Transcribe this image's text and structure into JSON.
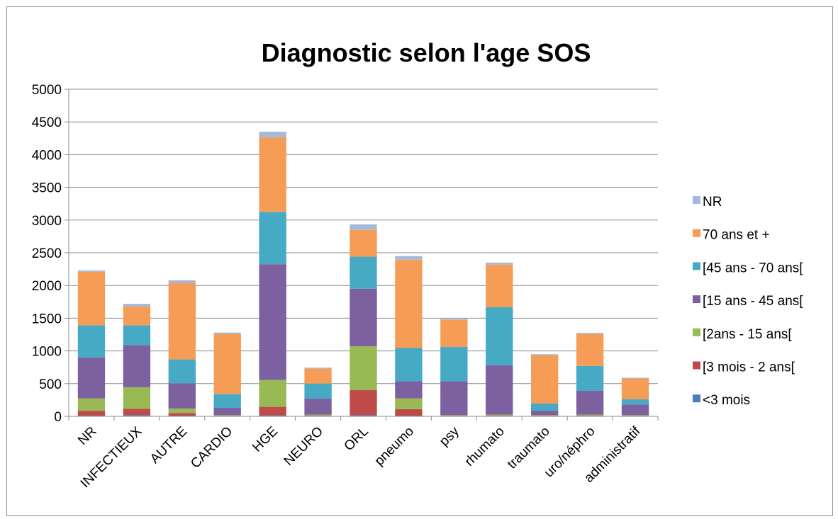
{
  "chart_data": {
    "type": "bar",
    "stacked": true,
    "title": "Diagnostic selon l'age SOS",
    "xlabel": "",
    "ylabel": "",
    "ylim": [
      0,
      5000
    ],
    "yticks": [
      0,
      500,
      1000,
      1500,
      2000,
      2500,
      3000,
      3500,
      4000,
      4500,
      5000
    ],
    "grid": true,
    "legend_position": "right",
    "categories": [
      "NR",
      "INFECTIEUX",
      "AUTRE",
      "CARDIO",
      "HGE",
      "NEURO",
      "ORL",
      "pneumo",
      "psy",
      "rhumato",
      "traumato",
      "uro/néphro",
      "administratif"
    ],
    "series": [
      {
        "name": "<3 mois",
        "color": "#4a7ebb",
        "values": [
          10,
          20,
          10,
          5,
          15,
          5,
          20,
          10,
          5,
          5,
          5,
          5,
          5
        ]
      },
      {
        "name": "[3 mois - 2 ans[",
        "color": "#be4b48",
        "values": [
          75,
          95,
          40,
          5,
          130,
          5,
          380,
          100,
          5,
          5,
          5,
          5,
          5
        ]
      },
      {
        "name": "[2ans - 15 ans[",
        "color": "#98b954",
        "values": [
          190,
          330,
          70,
          10,
          410,
          15,
          670,
          165,
          10,
          15,
          10,
          15,
          10
        ]
      },
      {
        "name": "[15 ans - 45 ans[",
        "color": "#7d60a0",
        "values": [
          625,
          645,
          385,
          110,
          1770,
          245,
          880,
          260,
          515,
          755,
          70,
          365,
          160
        ]
      },
      {
        "name": "[45 ans - 70 ans[",
        "color": "#46aac5",
        "values": [
          490,
          300,
          365,
          210,
          800,
          230,
          490,
          510,
          525,
          890,
          105,
          380,
          80
        ]
      },
      {
        "name": "70 ans et +",
        "color": "#f59d56",
        "values": [
          820,
          290,
          1170,
          920,
          1140,
          230,
          410,
          1350,
          415,
          650,
          740,
          490,
          320
        ]
      },
      {
        "name": "NR",
        "color": "#a5b9da",
        "values": [
          20,
          40,
          40,
          20,
          85,
          15,
          85,
          55,
          15,
          30,
          15,
          15,
          10
        ]
      }
    ]
  }
}
